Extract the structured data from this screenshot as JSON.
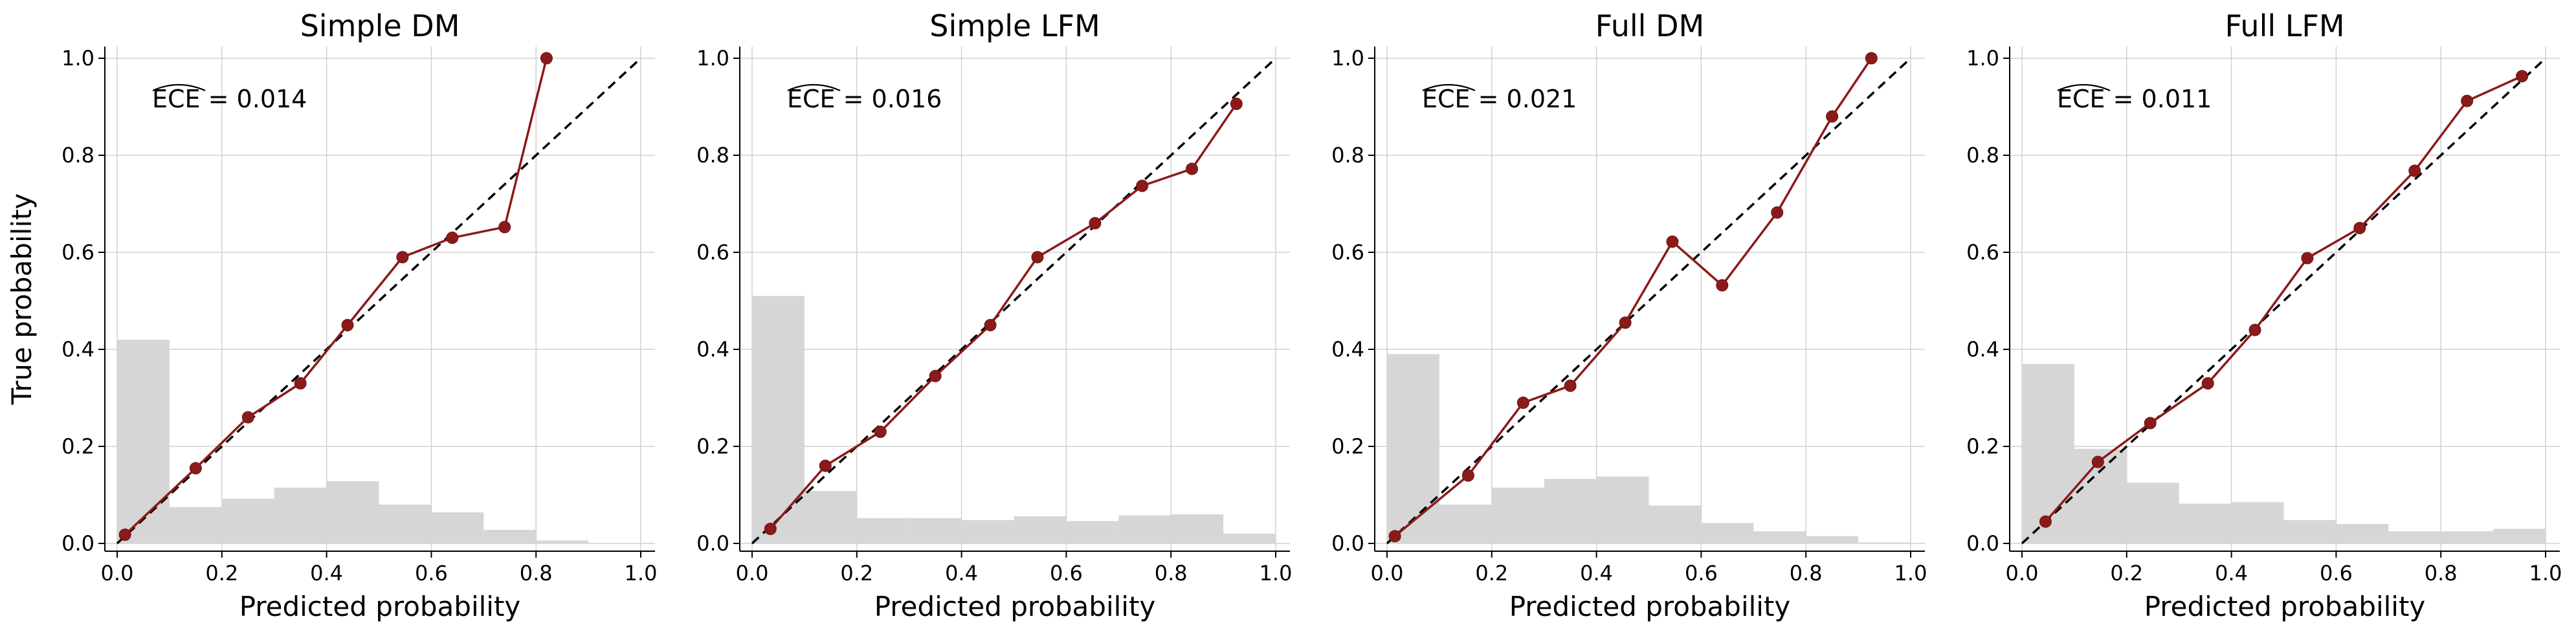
{
  "figure": {
    "ylabel": "True probability",
    "xlabel": "Predicted probability"
  },
  "chart_data": [
    {
      "type": "line",
      "title": "Simple DM",
      "xlabel": "Predicted probability",
      "ylabel": "True probability",
      "xlim": [
        0,
        1
      ],
      "ylim": [
        0,
        1
      ],
      "xticks": [
        "0.0",
        "0.2",
        "0.4",
        "0.6",
        "0.8",
        "1.0"
      ],
      "yticks": [
        "0.0",
        "0.2",
        "0.4",
        "0.6",
        "0.8",
        "1.0"
      ],
      "grid": true,
      "ece_label": "ECE",
      "ece_value": " = 0.014",
      "diagonal": true,
      "series_color": "#8b1a1a",
      "histogram_color": "#d6d6d6",
      "histogram": [
        0.42,
        0.075,
        0.092,
        0.115,
        0.128,
        0.08,
        0.064,
        0.028,
        0.006,
        0.001
      ],
      "points": {
        "x": [
          0.015,
          0.15,
          0.25,
          0.35,
          0.44,
          0.545,
          0.64,
          0.74,
          0.82
        ],
        "y": [
          0.018,
          0.155,
          0.26,
          0.33,
          0.45,
          0.59,
          0.63,
          0.652,
          1.0
        ]
      }
    },
    {
      "type": "line",
      "title": "Simple LFM",
      "xlabel": "Predicted probability",
      "ylabel": "",
      "xlim": [
        0,
        1
      ],
      "ylim": [
        0,
        1
      ],
      "xticks": [
        "0.0",
        "0.2",
        "0.4",
        "0.6",
        "0.8",
        "1.0"
      ],
      "yticks": [
        "0.0",
        "0.2",
        "0.4",
        "0.6",
        "0.8",
        "1.0"
      ],
      "grid": true,
      "ece_label": "ECE",
      "ece_value": " = 0.016",
      "diagonal": true,
      "series_color": "#8b1a1a",
      "histogram_color": "#d6d6d6",
      "histogram": [
        0.51,
        0.108,
        0.052,
        0.052,
        0.048,
        0.056,
        0.046,
        0.058,
        0.06,
        0.02
      ],
      "points": {
        "x": [
          0.035,
          0.14,
          0.245,
          0.35,
          0.455,
          0.545,
          0.655,
          0.745,
          0.84,
          0.925
        ],
        "y": [
          0.03,
          0.16,
          0.23,
          0.345,
          0.45,
          0.59,
          0.66,
          0.737,
          0.772,
          0.906
        ]
      }
    },
    {
      "type": "line",
      "title": "Full DM",
      "xlabel": "Predicted probability",
      "ylabel": "",
      "xlim": [
        0,
        1
      ],
      "ylim": [
        0,
        1
      ],
      "xticks": [
        "0.0",
        "0.2",
        "0.4",
        "0.6",
        "0.8",
        "1.0"
      ],
      "yticks": [
        "0.0",
        "0.2",
        "0.4",
        "0.6",
        "0.8",
        "1.0"
      ],
      "grid": true,
      "ece_label": "ECE",
      "ece_value": " = 0.021",
      "diagonal": true,
      "series_color": "#8b1a1a",
      "histogram_color": "#d6d6d6",
      "histogram": [
        0.39,
        0.08,
        0.115,
        0.133,
        0.138,
        0.078,
        0.042,
        0.025,
        0.015,
        0.002
      ],
      "points": {
        "x": [
          0.015,
          0.155,
          0.26,
          0.35,
          0.455,
          0.545,
          0.64,
          0.745,
          0.85,
          0.925
        ],
        "y": [
          0.015,
          0.14,
          0.29,
          0.325,
          0.455,
          0.622,
          0.532,
          0.682,
          0.88,
          1.0
        ]
      }
    },
    {
      "type": "line",
      "title": "Full LFM",
      "xlabel": "Predicted probability",
      "ylabel": "",
      "xlim": [
        0,
        1
      ],
      "ylim": [
        0,
        1
      ],
      "xticks": [
        "0.0",
        "0.2",
        "0.4",
        "0.6",
        "0.8",
        "1.0"
      ],
      "yticks": [
        "0.0",
        "0.2",
        "0.4",
        "0.6",
        "0.8",
        "1.0"
      ],
      "grid": true,
      "ece_label": "ECE",
      "ece_value": " = 0.011",
      "diagonal": true,
      "series_color": "#8b1a1a",
      "histogram_color": "#d6d6d6",
      "histogram": [
        0.37,
        0.195,
        0.125,
        0.082,
        0.085,
        0.048,
        0.04,
        0.025,
        0.025,
        0.03
      ],
      "points": {
        "x": [
          0.045,
          0.145,
          0.245,
          0.355,
          0.445,
          0.545,
          0.645,
          0.75,
          0.85,
          0.955
        ],
        "y": [
          0.045,
          0.168,
          0.248,
          0.33,
          0.44,
          0.588,
          0.65,
          0.768,
          0.912,
          0.963
        ]
      }
    }
  ]
}
